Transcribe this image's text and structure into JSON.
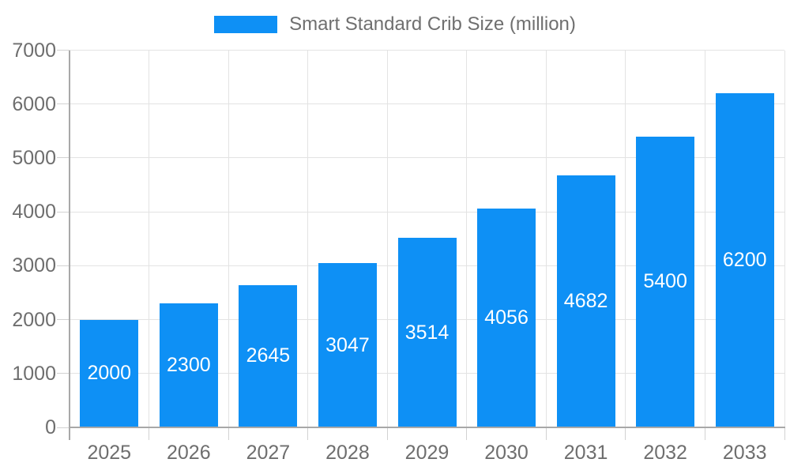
{
  "legend": {
    "series_label": "Smart Standard Crib Size (million)"
  },
  "chart_data": {
    "type": "bar",
    "title": "Smart Standard Crib Size (million)",
    "categories": [
      "2025",
      "2026",
      "2027",
      "2028",
      "2029",
      "2030",
      "2031",
      "2032",
      "2033"
    ],
    "values": [
      2000,
      2300,
      2645,
      3047,
      3514,
      4056,
      4682,
      5400,
      6200
    ],
    "series": [
      {
        "name": "Smart Standard Crib Size (million)",
        "values": [
          2000,
          2300,
          2645,
          3047,
          3514,
          4056,
          4682,
          5400,
          6200
        ]
      }
    ],
    "xlabel": "",
    "ylabel": "",
    "ylim": [
      0,
      7000
    ],
    "ytick_interval": 1000,
    "ytick_labels": [
      "0",
      "1000",
      "2000",
      "3000",
      "4000",
      "5000",
      "6000",
      "7000"
    ],
    "grid": true,
    "legend_position": "top-center",
    "value_label_position": "inside-center",
    "colors": {
      "bar": "#0e90f5",
      "grid": "#e3e3e3",
      "tick": "#d2d2d2",
      "axis": "#a8a8a8",
      "label": "#6e6e6e",
      "value_label": "#ffffff",
      "legend_text": "#6f6f6f",
      "background": "#ffffff"
    }
  }
}
